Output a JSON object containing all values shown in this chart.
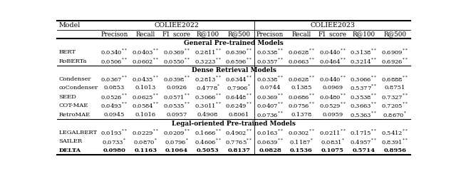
{
  "sub_headers": [
    "Precison",
    "Recall",
    "F1_score",
    "R@100",
    "R@500",
    "Precison",
    "Recall",
    "F1_score",
    "R@100",
    "R@500"
  ],
  "sections": [
    {
      "title": "General Pre-trained Models",
      "rows": [
        [
          "BERT",
          "0.0340**",
          "0.0403**",
          "0.0369**",
          "0.2811**",
          "0.6390**",
          "0.0338**",
          "0.0628**",
          "0.0440**",
          "0.3138**",
          "0.6909**"
        ],
        [
          "RoBERTa",
          "0.0506**",
          "0.0602**",
          "0.0550**",
          "0.3223**",
          "0.6596**",
          "0.0357**",
          "0.0663**",
          "0.0464**",
          "0.3214**",
          "0.6926**"
        ]
      ]
    },
    {
      "title": "Dense Retrieval Models",
      "rows": [
        [
          "Condenser",
          "0.0367**",
          "0.0435**",
          "0.0398**",
          "0.2813**",
          "0.6344**",
          "0.0338**",
          "0.0628**",
          "0.0440**",
          "0.3066**",
          "0.6888**"
        ],
        [
          "coCondenser",
          "0.0853",
          "0.1013",
          "0.0926",
          "0.4778*",
          "0.7906*",
          "0.0744",
          "0.1385",
          "0.0969",
          "0.5377**",
          "0.8751"
        ],
        [
          "SEED",
          "0.0526**",
          "0.0625**",
          "0.0571**",
          "0.3066**",
          "0.6448**",
          "0.0369**",
          "0.0686**",
          "0.0480**",
          "0.3538**",
          "0.7327**"
        ],
        [
          "COT-MAE",
          "0.0493**",
          "0.0584**",
          "0.0535**",
          "0.3011**",
          "0.6249**",
          "0.0407**",
          "0.0756**",
          "0.0529**",
          "0.3663**",
          "0.7205**"
        ],
        [
          "RetroMAE",
          "0.0945",
          "0.1016",
          "0.0957",
          "0.4908",
          "0.8061",
          "0.0736**",
          "0.1378",
          "0.0959",
          "0.5363**",
          "0.8670*"
        ]
      ]
    },
    {
      "title": "Legal-oriented Pre-trained Models",
      "rows": [
        [
          "LEGALBERT",
          "0.0193**",
          "0.0229**",
          "0.0209**",
          "0.1666**",
          "0.4902**",
          "0.0163**",
          "0.0302**",
          "0.0211**",
          "0.1715**",
          "0.5412**"
        ],
        [
          "SAILER",
          "0.0733*",
          "0.0870*",
          "0.0796*",
          "0.4606**",
          "0.7765**",
          "0.0639**",
          "0.1187*",
          "0.0831*",
          "0.4957**",
          "0.8391**"
        ],
        [
          "DELTA",
          "0.0980",
          "0.1163",
          "0.1064",
          "0.5053",
          "0.8137",
          "0.0828",
          "0.1536",
          "0.1075",
          "0.5714",
          "0.8956"
        ]
      ]
    }
  ],
  "bold_rows": [
    "DELTA"
  ],
  "fig_width": 6.4,
  "fig_height": 2.44,
  "dpi": 100
}
